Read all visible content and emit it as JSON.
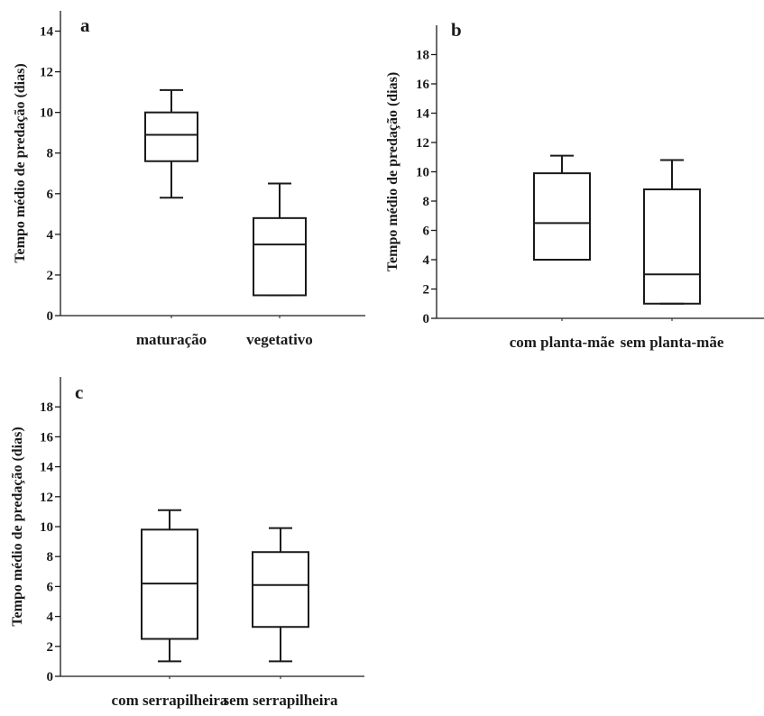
{
  "chart_data": [
    {
      "type": "box",
      "panel_label": "a",
      "ylabel": "Tempo médio de predação (dias)",
      "ylim": [
        0,
        15
      ],
      "yticks": [
        0,
        2,
        4,
        6,
        8,
        10,
        12,
        14
      ],
      "categories": [
        "maturação",
        "vegetativo"
      ],
      "boxes": [
        {
          "min": 5.8,
          "q1": 7.6,
          "median": 8.9,
          "q3": 10.0,
          "max": 11.1
        },
        {
          "min": 1.0,
          "q1": 1.0,
          "median": 3.5,
          "q3": 4.8,
          "max": 6.5
        }
      ]
    },
    {
      "type": "box",
      "panel_label": "b",
      "ylabel": "Tempo médio de predação (dias)",
      "ylim": [
        0,
        20
      ],
      "yticks": [
        0,
        2,
        4,
        6,
        8,
        10,
        12,
        14,
        16,
        18
      ],
      "categories": [
        "com planta-mãe",
        "sem planta-mãe"
      ],
      "boxes": [
        {
          "min": 4.0,
          "q1": 4.0,
          "median": 6.5,
          "q3": 9.9,
          "max": 11.1
        },
        {
          "min": 1.0,
          "q1": 1.0,
          "median": 3.0,
          "q3": 8.8,
          "max": 10.8
        }
      ]
    },
    {
      "type": "box",
      "panel_label": "c",
      "ylabel": "Tempo médio de predação (dias)",
      "ylim": [
        0,
        20
      ],
      "yticks": [
        0,
        2,
        4,
        6,
        8,
        10,
        12,
        14,
        16,
        18
      ],
      "categories": [
        "com serrapilheira",
        "sem serrapilheira"
      ],
      "boxes": [
        {
          "min": 1.0,
          "q1": 2.5,
          "median": 6.2,
          "q3": 9.8,
          "max": 11.1
        },
        {
          "min": 1.0,
          "q1": 3.3,
          "median": 6.1,
          "q3": 8.3,
          "max": 9.9
        }
      ]
    }
  ]
}
